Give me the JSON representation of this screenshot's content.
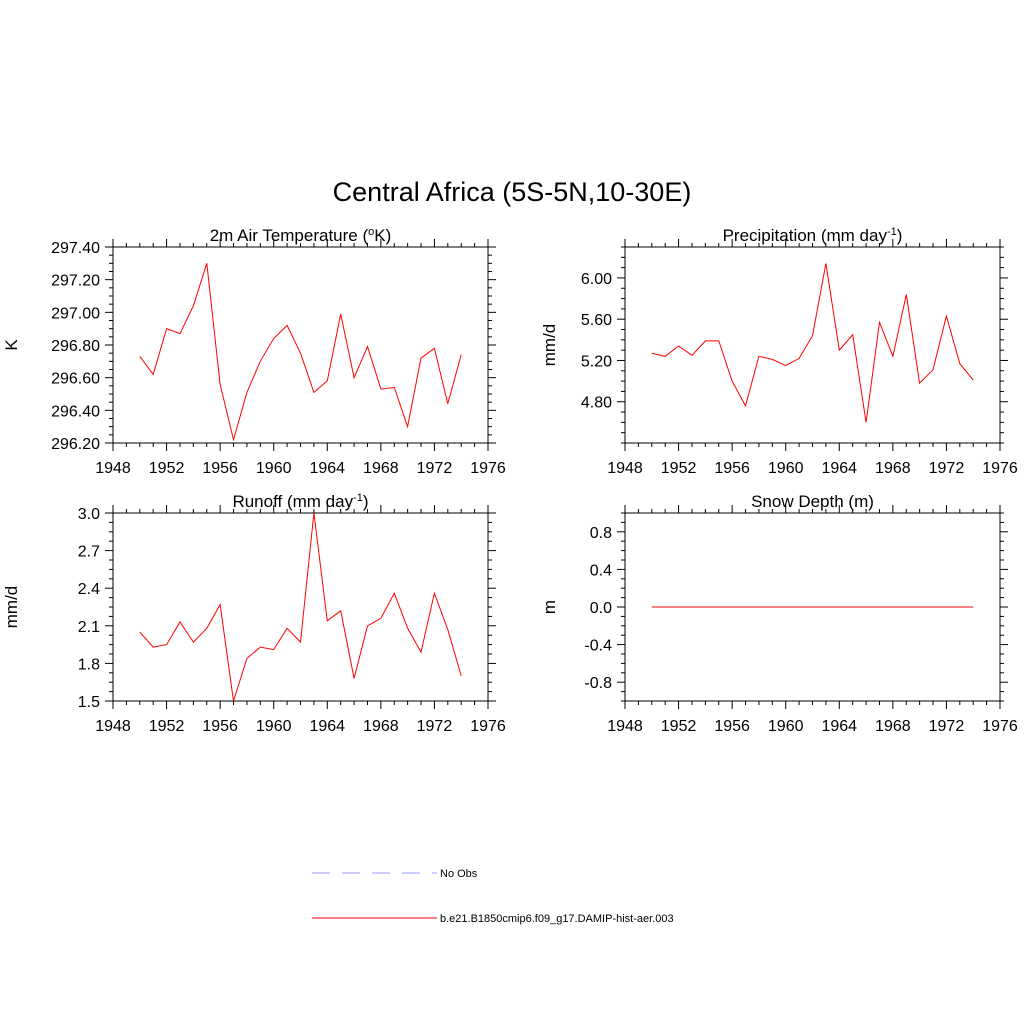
{
  "title": "Central Africa (5S-5N,10-30E)",
  "legend": {
    "entries": [
      {
        "label": "No Obs",
        "color": "#9999ff",
        "dash": true
      },
      {
        "label": "b.e21.B1850cmip6.f09_g17.DAMIP-hist-aer.003",
        "color": "#ff0000",
        "dash": false
      }
    ]
  },
  "chart_data": [
    {
      "type": "line",
      "title": "2m Air Temperature (",
      "title_sup": "o",
      "title_tail": "K)",
      "xlabel": "",
      "ylabel": "K",
      "xlim": [
        1948,
        1976
      ],
      "ylim": [
        296.2,
        297.4
      ],
      "xticks": [
        1948,
        1952,
        1956,
        1960,
        1964,
        1968,
        1972,
        1976
      ],
      "yticks": [
        296.2,
        296.4,
        296.6,
        296.8,
        297.0,
        297.2,
        297.4
      ],
      "ytick_labels": [
        "296.20",
        "296.40",
        "296.60",
        "296.80",
        "297.00",
        "297.20",
        "297.40"
      ],
      "series": [
        {
          "color": "#ff0000",
          "x": [
            1950,
            1951,
            1952,
            1953,
            1954,
            1955,
            1956,
            1957,
            1958,
            1959,
            1960,
            1961,
            1962,
            1963,
            1964,
            1965,
            1966,
            1967,
            1968,
            1969,
            1970,
            1971,
            1972,
            1973,
            1974
          ],
          "y": [
            296.73,
            296.62,
            296.9,
            296.87,
            297.04,
            297.3,
            296.56,
            296.22,
            296.51,
            296.7,
            296.84,
            296.92,
            296.75,
            296.51,
            296.58,
            296.99,
            296.6,
            296.79,
            296.53,
            296.54,
            296.3,
            296.72,
            296.78,
            296.44,
            296.74
          ]
        }
      ]
    },
    {
      "type": "line",
      "title": "Precipitation (mm day",
      "title_sup": "-1",
      "title_tail": ")",
      "xlabel": "",
      "ylabel": "mm/d",
      "xlim": [
        1948,
        1976
      ],
      "ylim": [
        4.4,
        6.3
      ],
      "xticks": [
        1948,
        1952,
        1956,
        1960,
        1964,
        1968,
        1972,
        1976
      ],
      "yticks": [
        4.8,
        5.2,
        5.6,
        6.0
      ],
      "ytick_labels": [
        "4.80",
        "5.20",
        "5.60",
        "6.00"
      ],
      "series": [
        {
          "color": "#ff0000",
          "x": [
            1950,
            1951,
            1952,
            1953,
            1954,
            1955,
            1956,
            1957,
            1958,
            1959,
            1960,
            1961,
            1962,
            1963,
            1964,
            1965,
            1966,
            1967,
            1968,
            1969,
            1970,
            1971,
            1972,
            1973,
            1974
          ],
          "y": [
            5.27,
            5.24,
            5.34,
            5.25,
            5.39,
            5.39,
            5.0,
            4.76,
            5.24,
            5.21,
            5.15,
            5.22,
            5.44,
            6.14,
            5.3,
            5.45,
            4.6,
            5.57,
            5.24,
            5.84,
            4.98,
            5.11,
            5.63,
            5.17,
            5.01
          ]
        }
      ]
    },
    {
      "type": "line",
      "title": "Runoff (mm day",
      "title_sup": "-1",
      "title_tail": ")",
      "xlabel": "",
      "ylabel": "mm/d",
      "xlim": [
        1948,
        1976
      ],
      "ylim": [
        1.5,
        3.0
      ],
      "xticks": [
        1948,
        1952,
        1956,
        1960,
        1964,
        1968,
        1972,
        1976
      ],
      "yticks": [
        1.5,
        1.8,
        2.1,
        2.4,
        2.7,
        3.0
      ],
      "ytick_labels": [
        "1.5",
        "1.8",
        "2.1",
        "2.4",
        "2.7",
        "3.0"
      ],
      "series": [
        {
          "color": "#ff0000",
          "x": [
            1950,
            1951,
            1952,
            1953,
            1954,
            1955,
            1956,
            1957,
            1958,
            1959,
            1960,
            1961,
            1962,
            1963,
            1964,
            1965,
            1966,
            1967,
            1968,
            1969,
            1970,
            1971,
            1972,
            1973,
            1974
          ],
          "y": [
            2.05,
            1.93,
            1.95,
            2.13,
            1.97,
            2.08,
            2.27,
            1.5,
            1.84,
            1.93,
            1.91,
            2.08,
            1.97,
            3.0,
            2.14,
            2.22,
            1.68,
            2.1,
            2.16,
            2.36,
            2.08,
            1.89,
            2.36,
            2.07,
            1.7
          ]
        }
      ]
    },
    {
      "type": "line",
      "title": "Snow Depth (m)",
      "title_sup": "",
      "title_tail": "",
      "xlabel": "",
      "ylabel": "m",
      "xlim": [
        1948,
        1976
      ],
      "ylim": [
        -1.0,
        1.0
      ],
      "xticks": [
        1948,
        1952,
        1956,
        1960,
        1964,
        1968,
        1972,
        1976
      ],
      "yticks": [
        -0.8,
        -0.4,
        0.0,
        0.4,
        0.8
      ],
      "ytick_labels": [
        "-0.8",
        "-0.4",
        "0.0",
        "0.4",
        "0.8"
      ],
      "series": [
        {
          "color": "#ff0000",
          "x": [
            1950,
            1974
          ],
          "y": [
            0.0,
            0.0
          ]
        }
      ]
    }
  ]
}
